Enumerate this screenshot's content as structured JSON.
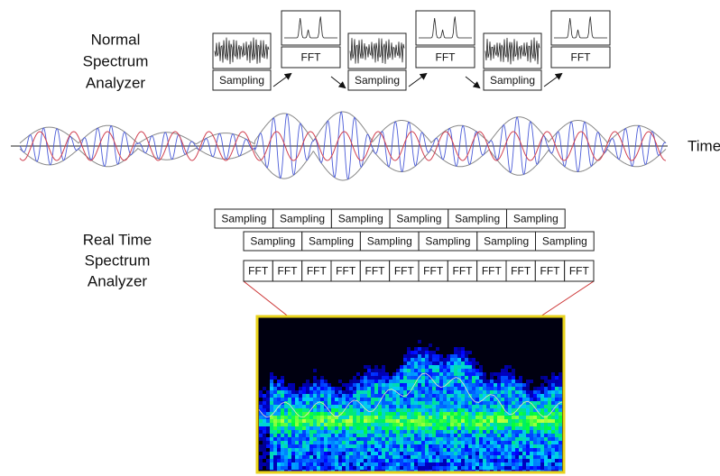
{
  "normal": {
    "label": [
      "Normal",
      "Spectrum",
      "Analyzer"
    ],
    "sampling": [
      "Sampling",
      "Sampling",
      "Sampling"
    ],
    "fft": [
      "FFT",
      "FFT",
      "FFT"
    ]
  },
  "axis_label": "Time",
  "realtime": {
    "label": [
      "Real Time",
      "Spectrum",
      "Analyzer"
    ],
    "sampling_row1": [
      "Sampling",
      "Sampling",
      "Sampling",
      "Sampling",
      "Sampling",
      "Sampling"
    ],
    "sampling_row2": [
      "Sampling",
      "Sampling",
      "Sampling",
      "Sampling",
      "Sampling",
      "Sampling"
    ],
    "fft_row": [
      "FFT",
      "FFT",
      "FFT",
      "FFT",
      "FFT",
      "FFT",
      "FFT",
      "FFT",
      "FFT",
      "FFT",
      "FFT",
      "FFT"
    ]
  }
}
